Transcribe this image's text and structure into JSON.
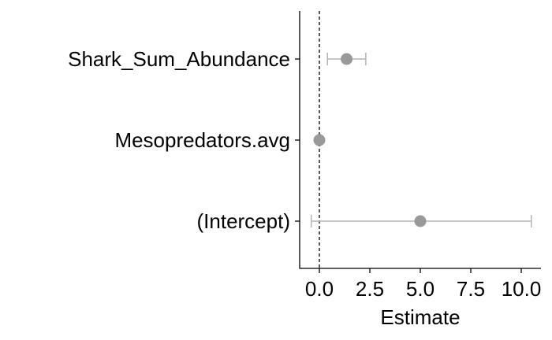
{
  "chart_data": {
    "type": "scatter",
    "variant": "coefficient-plot-with-error-bars",
    "xlabel": "Estimate",
    "ylabel": "",
    "xlim": [
      -1.0,
      11.0
    ],
    "x_ticks": [
      0.0,
      2.5,
      5.0,
      7.5,
      10.0
    ],
    "x_tick_labels": [
      "0.0",
      "2.5",
      "5.0",
      "7.5",
      "10.0"
    ],
    "reference_line": {
      "x": 0,
      "style": "dashed"
    },
    "categories": [
      "Shark_Sum_Abundance",
      "Mesopredators.avg",
      "(Intercept)"
    ],
    "estimates": [
      1.35,
      0.0,
      5.0
    ],
    "ci_lower": [
      0.4,
      -0.05,
      -0.4
    ],
    "ci_upper": [
      2.3,
      0.05,
      10.5
    ],
    "grid": false,
    "legend": "none",
    "colors": {
      "point": "#999999",
      "errorbar": "#b3b3b3",
      "axis": "#000000",
      "reference_line": "#000000"
    }
  }
}
